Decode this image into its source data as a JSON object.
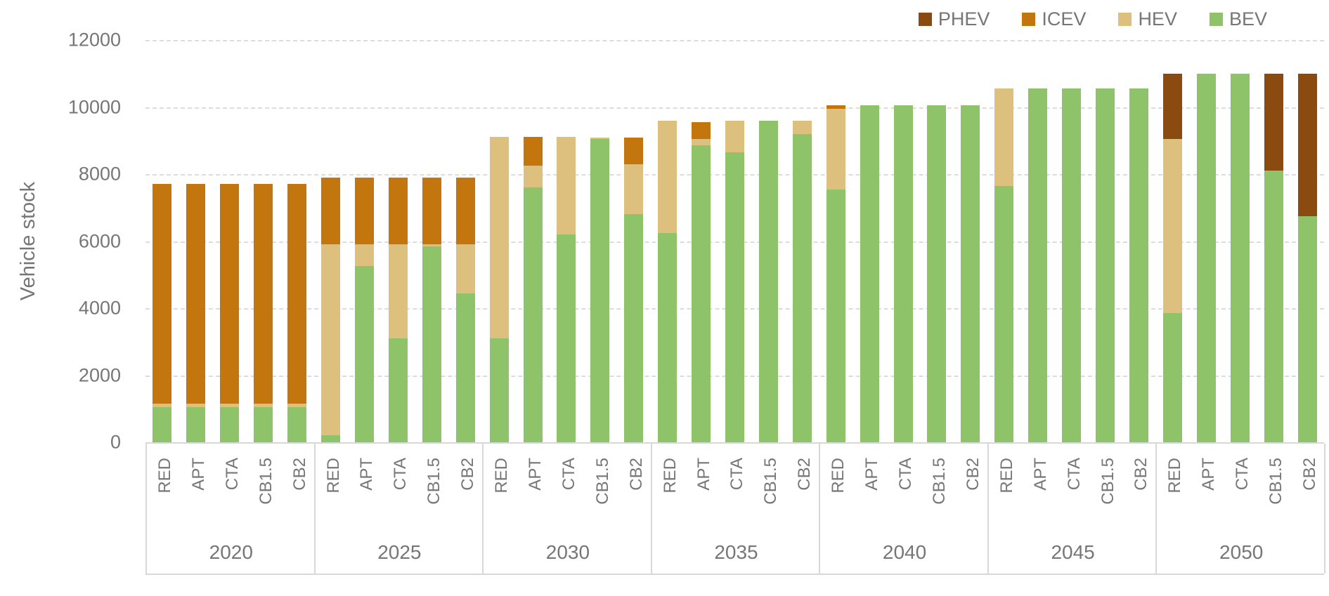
{
  "y_axis": {
    "title": "Vehicle stock"
  },
  "legend": [
    {
      "label": "PHEV",
      "color": "#8a4a10"
    },
    {
      "label": "ICEV",
      "color": "#c4760e"
    },
    {
      "label": "HEV",
      "color": "#ddc07e"
    },
    {
      "label": "BEV",
      "color": "#8fc369"
    }
  ],
  "chart_data": {
    "type": "bar",
    "stacked": true,
    "title": "",
    "xlabel": "",
    "ylabel": "Vehicle stock",
    "ylim": [
      0,
      12000
    ],
    "yticks": [
      0,
      2000,
      4000,
      6000,
      8000,
      10000,
      12000
    ],
    "grid": "horizontal-dashed",
    "legend_position": "top-right",
    "categories": [
      "RED",
      "APT",
      "CTA",
      "CB1.5",
      "CB2"
    ],
    "stack_order_bottom_to_top": [
      "BEV",
      "HEV",
      "ICEV",
      "PHEV"
    ],
    "series_colors": {
      "BEV": "#8fc369",
      "HEV": "#ddc07e",
      "ICEV": "#c4760e",
      "PHEV": "#8a4a10"
    },
    "groups": [
      {
        "year": "2020",
        "bars": [
          {
            "label": "RED",
            "BEV": 1050,
            "HEV": 100,
            "ICEV": 6550,
            "PHEV": 0
          },
          {
            "label": "APT",
            "BEV": 1050,
            "HEV": 100,
            "ICEV": 6550,
            "PHEV": 0
          },
          {
            "label": "CTA",
            "BEV": 1050,
            "HEV": 100,
            "ICEV": 6550,
            "PHEV": 0
          },
          {
            "label": "CB1.5",
            "BEV": 1050,
            "HEV": 100,
            "ICEV": 6550,
            "PHEV": 0
          },
          {
            "label": "CB2",
            "BEV": 1050,
            "HEV": 100,
            "ICEV": 6550,
            "PHEV": 0
          }
        ]
      },
      {
        "year": "2025",
        "bars": [
          {
            "label": "RED",
            "BEV": 200,
            "HEV": 5700,
            "ICEV": 2000,
            "PHEV": 0
          },
          {
            "label": "APT",
            "BEV": 5250,
            "HEV": 650,
            "ICEV": 2000,
            "PHEV": 0
          },
          {
            "label": "CTA",
            "BEV": 3100,
            "HEV": 2800,
            "ICEV": 2000,
            "PHEV": 0
          },
          {
            "label": "CB1.5",
            "BEV": 5850,
            "HEV": 50,
            "ICEV": 2000,
            "PHEV": 0
          },
          {
            "label": "CB2",
            "BEV": 4450,
            "HEV": 1450,
            "ICEV": 2000,
            "PHEV": 0
          }
        ]
      },
      {
        "year": "2030",
        "bars": [
          {
            "label": "RED",
            "BEV": 3100,
            "HEV": 6000,
            "ICEV": 0,
            "PHEV": 0
          },
          {
            "label": "APT",
            "BEV": 7600,
            "HEV": 650,
            "ICEV": 850,
            "PHEV": 0
          },
          {
            "label": "CTA",
            "BEV": 6200,
            "HEV": 2900,
            "ICEV": 0,
            "PHEV": 0
          },
          {
            "label": "CB1.5",
            "BEV": 9050,
            "HEV": 50,
            "ICEV": 0,
            "PHEV": 0
          },
          {
            "label": "CB2",
            "BEV": 6800,
            "HEV": 1500,
            "ICEV": 800,
            "PHEV": 0
          }
        ]
      },
      {
        "year": "2035",
        "bars": [
          {
            "label": "RED",
            "BEV": 6250,
            "HEV": 3350,
            "ICEV": 0,
            "PHEV": 0
          },
          {
            "label": "APT",
            "BEV": 8850,
            "HEV": 200,
            "ICEV": 500,
            "PHEV": 0
          },
          {
            "label": "CTA",
            "BEV": 8650,
            "HEV": 950,
            "ICEV": 0,
            "PHEV": 0
          },
          {
            "label": "CB1.5",
            "BEV": 9600,
            "HEV": 0,
            "ICEV": 0,
            "PHEV": 0
          },
          {
            "label": "CB2",
            "BEV": 9200,
            "HEV": 400,
            "ICEV": 0,
            "PHEV": 0
          }
        ]
      },
      {
        "year": "2040",
        "bars": [
          {
            "label": "RED",
            "BEV": 7550,
            "HEV": 2400,
            "ICEV": 100,
            "PHEV": 0
          },
          {
            "label": "APT",
            "BEV": 10050,
            "HEV": 0,
            "ICEV": 0,
            "PHEV": 0
          },
          {
            "label": "CTA",
            "BEV": 10050,
            "HEV": 0,
            "ICEV": 0,
            "PHEV": 0
          },
          {
            "label": "CB1.5",
            "BEV": 10050,
            "HEV": 0,
            "ICEV": 0,
            "PHEV": 0
          },
          {
            "label": "CB2",
            "BEV": 10050,
            "HEV": 0,
            "ICEV": 0,
            "PHEV": 0
          }
        ]
      },
      {
        "year": "2045",
        "bars": [
          {
            "label": "RED",
            "BEV": 7650,
            "HEV": 2900,
            "ICEV": 0,
            "PHEV": 0
          },
          {
            "label": "APT",
            "BEV": 10550,
            "HEV": 0,
            "ICEV": 0,
            "PHEV": 0
          },
          {
            "label": "CTA",
            "BEV": 10550,
            "HEV": 0,
            "ICEV": 0,
            "PHEV": 0
          },
          {
            "label": "CB1.5",
            "BEV": 10550,
            "HEV": 0,
            "ICEV": 0,
            "PHEV": 0
          },
          {
            "label": "CB2",
            "BEV": 10550,
            "HEV": 0,
            "ICEV": 0,
            "PHEV": 0
          }
        ]
      },
      {
        "year": "2050",
        "bars": [
          {
            "label": "RED",
            "BEV": 3850,
            "HEV": 5200,
            "ICEV": 0,
            "PHEV": 1950
          },
          {
            "label": "APT",
            "BEV": 11000,
            "HEV": 0,
            "ICEV": 0,
            "PHEV": 0
          },
          {
            "label": "CTA",
            "BEV": 11000,
            "HEV": 0,
            "ICEV": 0,
            "PHEV": 0
          },
          {
            "label": "CB1.5",
            "BEV": 8100,
            "HEV": 0,
            "ICEV": 0,
            "PHEV": 2900
          },
          {
            "label": "CB2",
            "BEV": 6750,
            "HEV": 0,
            "ICEV": 0,
            "PHEV": 4250
          }
        ]
      }
    ]
  }
}
